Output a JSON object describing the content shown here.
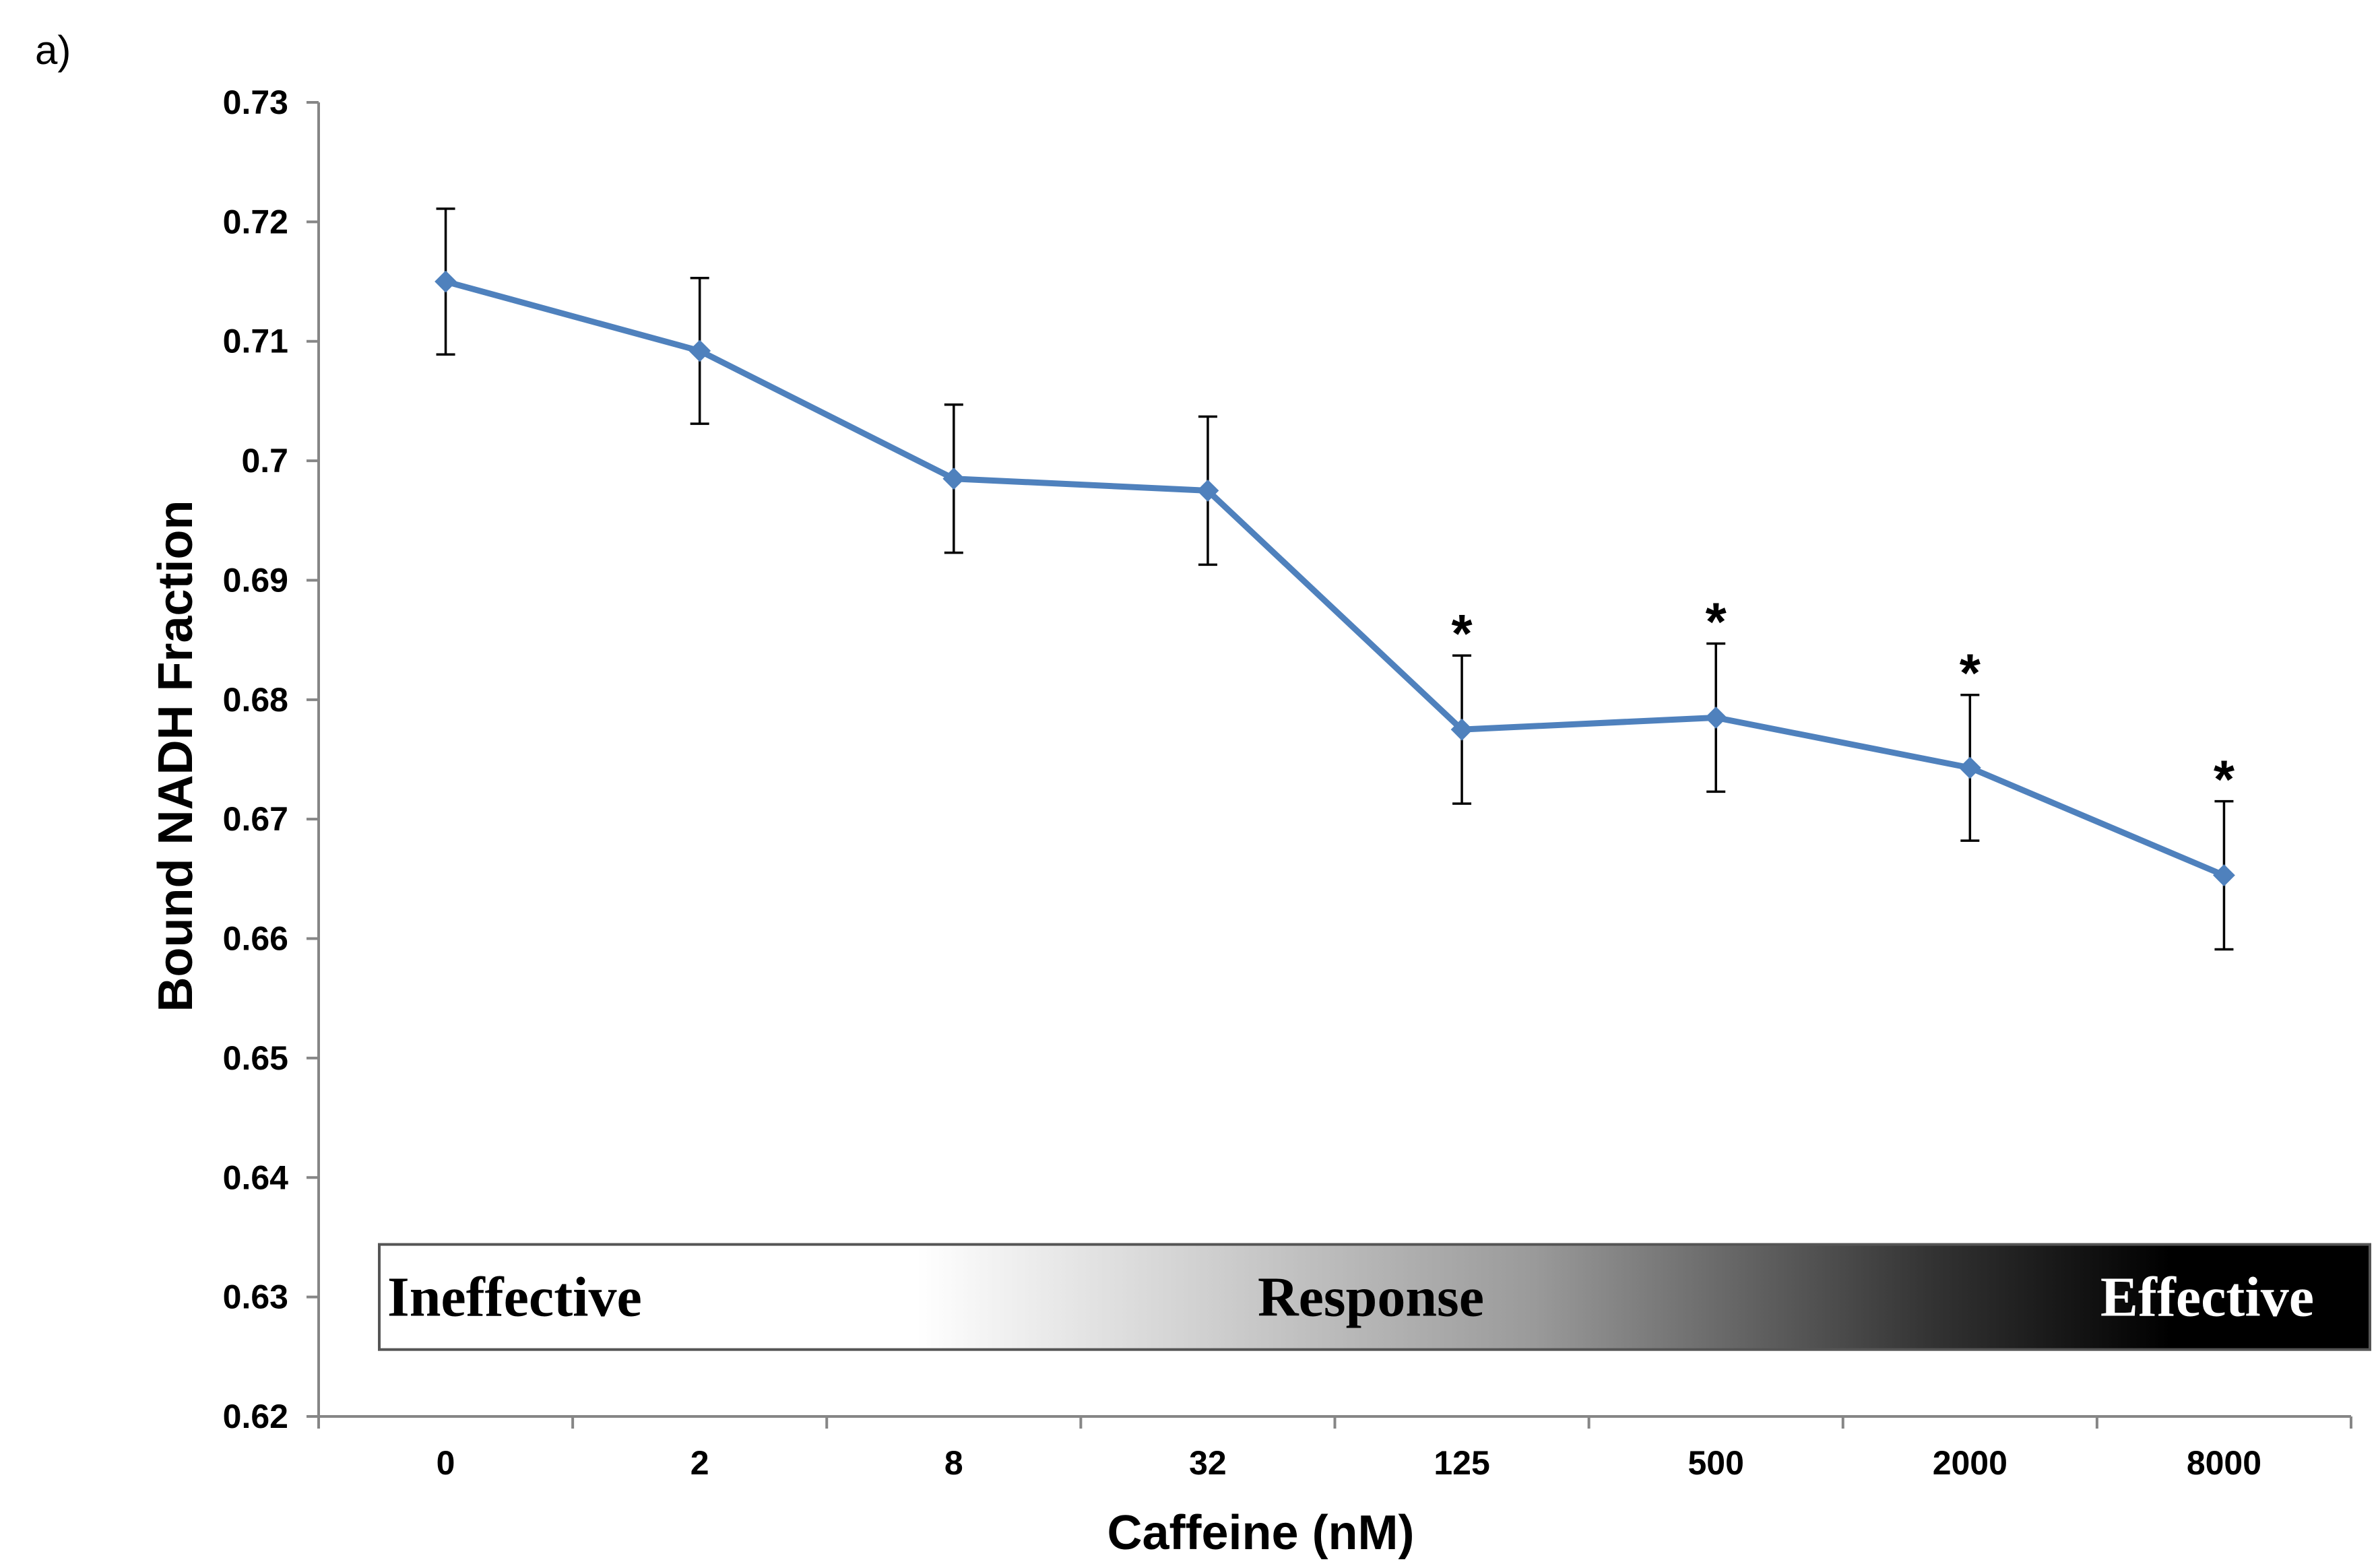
{
  "panel_label": "a)",
  "colors": {
    "series": "#4F81BD",
    "axis": "#868686",
    "error_bar": "#000000"
  },
  "chart_data": {
    "type": "line",
    "title": "",
    "xlabel": "Caffeine (nM)",
    "ylabel": "Bound NADH Fraction",
    "categories": [
      "0",
      "2",
      "8",
      "32",
      "125",
      "500",
      "2000",
      "8000"
    ],
    "series": [
      {
        "name": "Bound NADH Fraction",
        "values": [
          0.715,
          0.7092,
          0.6985,
          0.6975,
          0.6775,
          0.6785,
          0.6743,
          0.6653
        ],
        "error": [
          0.0061,
          0.0061,
          0.0062,
          0.0062,
          0.0062,
          0.0062,
          0.0061,
          0.0062
        ]
      }
    ],
    "significance": [
      "",
      "",
      "",
      "",
      "*",
      "*",
      "*",
      "*"
    ],
    "ylim": [
      0.62,
      0.73
    ],
    "yticks": [
      0.62,
      0.63,
      0.64,
      0.65,
      0.66,
      0.67,
      0.68,
      0.69,
      0.7,
      0.71,
      0.72,
      0.73
    ],
    "ytick_labels": [
      "0.62",
      "0.63",
      "0.64",
      "0.65",
      "0.66",
      "0.67",
      "0.68",
      "0.69",
      "0.7",
      "0.71",
      "0.72",
      "0.73"
    ],
    "grid": false,
    "legend": "none",
    "gradient_band": {
      "labels": [
        "Ineffective",
        "Response",
        "Effective"
      ],
      "y_range": [
        0.6256,
        0.6344
      ]
    }
  }
}
